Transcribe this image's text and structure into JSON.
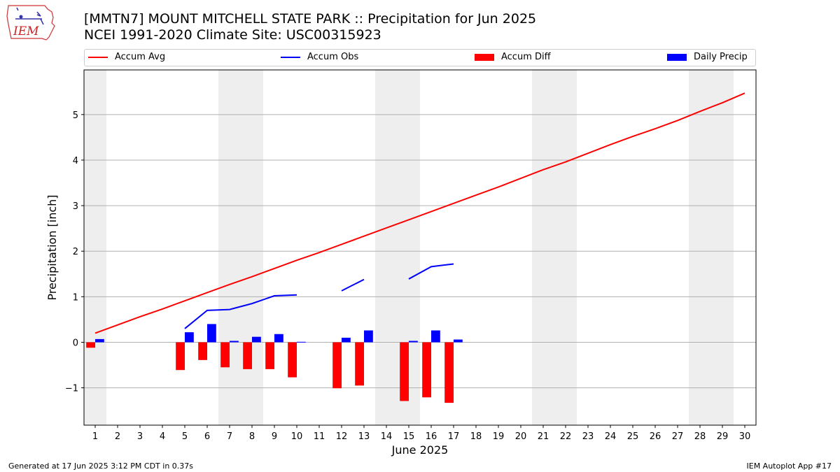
{
  "header": {
    "title_line1": "[MMTN7] MOUNT MITCHELL STATE PARK :: Precipitation for Jun 2025",
    "title_line2": "NCEI 1991-2020 Climate Site: USC00315923"
  },
  "logo": {
    "text": "IEM",
    "icon": "iem-iowa-logo-icon"
  },
  "legend": {
    "accum_avg": "Accum Avg",
    "accum_obs": "Accum Obs",
    "accum_diff": "Accum Diff",
    "daily_precip": "Daily Precip"
  },
  "footer": {
    "left": "Generated at 17 Jun 2025 3:12 PM CDT in 0.37s",
    "right": "IEM Autoplot App #17"
  },
  "colors": {
    "avg": "#ff0000",
    "obs": "#0000ff",
    "diff": "#ff0000",
    "daily": "#0000ff",
    "weekend_shade": "#eeeeee",
    "grid": "#b0b0b0"
  },
  "chart_data": {
    "type": "bar",
    "xlabel": "June 2025",
    "ylabel": "Precipitation [inch]",
    "xlim": [
      0.5,
      30.5
    ],
    "ylim": [
      -1.82,
      5.98
    ],
    "yticks": [
      -1,
      0,
      1,
      2,
      3,
      4,
      5
    ],
    "ytick_labels": [
      "−1",
      "0",
      "1",
      "2",
      "3",
      "4",
      "5"
    ],
    "days": [
      1,
      2,
      3,
      4,
      5,
      6,
      7,
      8,
      9,
      10,
      11,
      12,
      13,
      14,
      15,
      16,
      17,
      18,
      19,
      20,
      21,
      22,
      23,
      24,
      25,
      26,
      27,
      28,
      29,
      30
    ],
    "weekend_shading": [
      [
        0.5,
        1.5
      ],
      [
        6.5,
        8.5
      ],
      [
        13.5,
        15.5
      ],
      [
        20.5,
        22.5
      ],
      [
        27.5,
        29.5
      ]
    ],
    "series": [
      {
        "name": "Accum Avg",
        "kind": "line",
        "x": [
          1,
          2,
          3,
          4,
          5,
          6,
          7,
          8,
          9,
          10,
          11,
          12,
          13,
          14,
          15,
          16,
          17,
          18,
          19,
          20,
          21,
          22,
          23,
          24,
          25,
          26,
          27,
          28,
          29,
          30
        ],
        "y": [
          0.2,
          0.38,
          0.56,
          0.73,
          0.91,
          1.09,
          1.27,
          1.44,
          1.62,
          1.8,
          1.97,
          2.15,
          2.33,
          2.51,
          2.69,
          2.87,
          3.05,
          3.23,
          3.41,
          3.6,
          3.79,
          3.96,
          4.15,
          4.34,
          4.52,
          4.69,
          4.87,
          5.07,
          5.26,
          5.47
        ]
      },
      {
        "name": "Accum Obs",
        "kind": "line",
        "segments": [
          {
            "x": [
              5,
              6,
              7,
              8,
              9,
              10
            ],
            "y": [
              0.3,
              0.7,
              0.72,
              0.85,
              1.02,
              1.04
            ]
          },
          {
            "x": [
              12,
              13
            ],
            "y": [
              1.13,
              1.38
            ]
          },
          {
            "x": [
              15,
              16,
              17
            ],
            "y": [
              1.39,
              1.66,
              1.72
            ]
          }
        ]
      },
      {
        "name": "Accum Diff",
        "kind": "bar",
        "x": [
          1,
          5,
          6,
          7,
          8,
          9,
          10,
          12,
          13,
          15,
          16,
          17
        ],
        "y": [
          -0.12,
          -0.61,
          -0.39,
          -0.55,
          -0.59,
          -0.59,
          -0.77,
          -1.01,
          -0.95,
          -1.29,
          -1.21,
          -1.33
        ]
      },
      {
        "name": "Daily Precip",
        "kind": "bar",
        "x": [
          1,
          5,
          6,
          7,
          8,
          9,
          10,
          12,
          13,
          15,
          16,
          17
        ],
        "y": [
          0.07,
          0.22,
          0.4,
          0.03,
          0.12,
          0.18,
          0.01,
          0.1,
          0.26,
          0.03,
          0.26,
          0.06
        ]
      }
    ]
  }
}
